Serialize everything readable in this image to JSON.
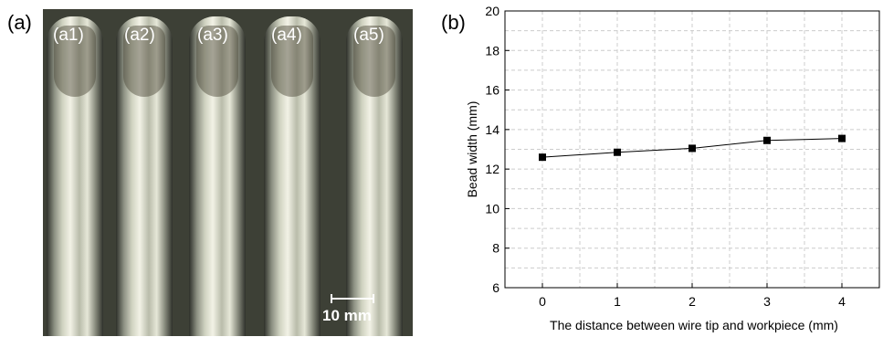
{
  "figure": {
    "panel_a_label": "(a)",
    "panel_b_label": "(b)",
    "bead_labels": [
      "(a1)",
      "(a2)",
      "(a3)",
      "(a4)",
      "(a5)"
    ],
    "scale_bar_label": "10 mm"
  },
  "chart_data": {
    "type": "line",
    "title": "",
    "xlabel": "The distance between wire tip and workpiece (mm)",
    "ylabel": "Bead width (mm)",
    "x": [
      0,
      1,
      2,
      3,
      4
    ],
    "series": [
      {
        "values": [
          12.6,
          12.85,
          13.05,
          13.45,
          13.55
        ],
        "color": "#000000",
        "marker": "square"
      }
    ],
    "xlim": [
      -0.5,
      4.5
    ],
    "ylim": [
      6,
      20
    ],
    "xticks": [
      0,
      1,
      2,
      3,
      4
    ],
    "yticks": [
      6,
      8,
      10,
      12,
      14,
      16,
      18,
      20
    ],
    "grid": true
  }
}
